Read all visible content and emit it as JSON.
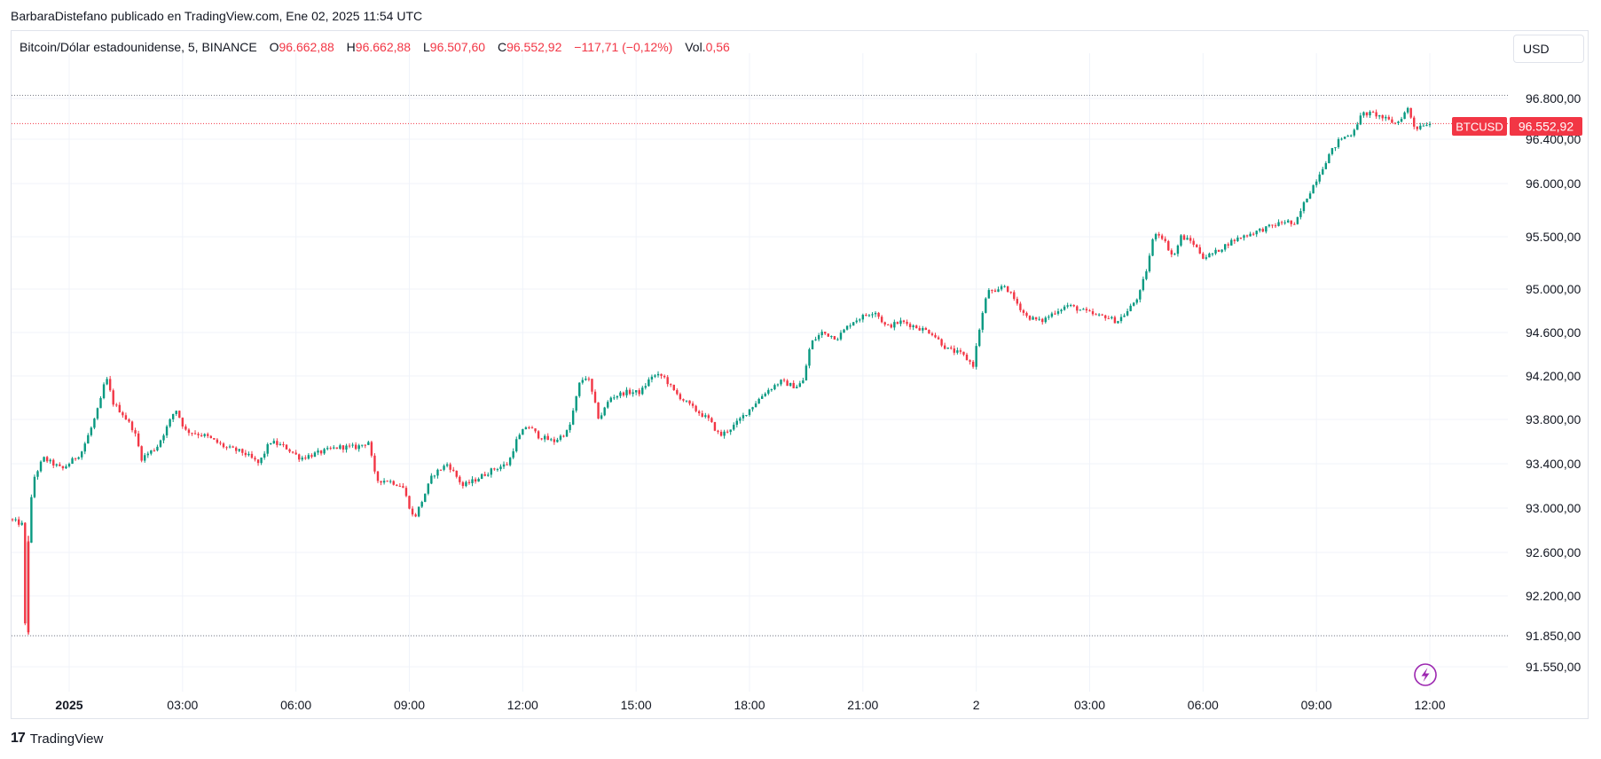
{
  "attribution": "BarbaraDistefano publicado en TradingView.com, Ene 02, 2025 11:54 UTC",
  "legend": {
    "symbol": "Bitcoin/Dólar estadounidense, 5, BINANCE",
    "o_label": "O",
    "o_value": "96.662,88",
    "h_label": "H",
    "h_value": "96.662,88",
    "l_label": "L",
    "l_value": "96.507,60",
    "c_label": "C",
    "c_value": "96.552,92",
    "change": "−117,71 (−0,12%)",
    "vol_label": "Vol.",
    "vol_value": "0,56"
  },
  "currency": "USD",
  "price_tag": {
    "symbol": "BTCUSD",
    "value": "96.552,92"
  },
  "footer": {
    "brand": "TradingView",
    "mark": "17"
  },
  "colors": {
    "up": "#089981",
    "down": "#f23645",
    "grid": "#f0f3fa",
    "accent_icon": "#9c27b0"
  },
  "chart_data": {
    "type": "candlestick",
    "title": "Bitcoin/Dólar estadounidense, 5, BINANCE",
    "interval": "5",
    "ylim": [
      91400,
      96950
    ],
    "y_ticks": [
      91550,
      91850,
      92200,
      92600,
      93000,
      93400,
      93800,
      94200,
      94600,
      95000,
      95500,
      96000,
      96400,
      96800
    ],
    "y_tick_labels": [
      "91.550,00",
      "91.850,00",
      "92.200,00",
      "92.600,00",
      "93.000,00",
      "93.400,00",
      "93.800,00",
      "94.200,00",
      "94.600,00",
      "95.000,00",
      "95.500,00",
      "96.000,00",
      "96.400,00",
      "96.800,00"
    ],
    "x_ticks": [
      {
        "label": "2025",
        "bold": true,
        "hour": 1.5
      },
      {
        "label": "03:00",
        "hour": 4.5
      },
      {
        "label": "06:00",
        "hour": 7.5
      },
      {
        "label": "09:00",
        "hour": 10.5
      },
      {
        "label": "12:00",
        "hour": 13.5
      },
      {
        "label": "15:00",
        "hour": 16.5
      },
      {
        "label": "18:00",
        "hour": 19.5
      },
      {
        "label": "21:00",
        "hour": 22.5
      },
      {
        "label": "2",
        "hour": 25.5
      },
      {
        "label": "03:00",
        "hour": 28.5
      },
      {
        "label": "06:00",
        "hour": 31.5
      },
      {
        "label": "09:00",
        "hour": 34.5
      },
      {
        "label": "12:00",
        "hour": 37.5
      }
    ],
    "x_range_hours": [
      0,
      39.5
    ],
    "high_line": 96830,
    "low_line": 91850,
    "last_price": 96552.92,
    "anchors": [
      [
        0,
        92900
      ],
      [
        0.35,
        92850
      ],
      [
        0.42,
        91900
      ],
      [
        0.5,
        92700
      ],
      [
        0.62,
        93250
      ],
      [
        0.9,
        93450
      ],
      [
        1.4,
        93350
      ],
      [
        1.9,
        93500
      ],
      [
        2.2,
        93750
      ],
      [
        2.4,
        93950
      ],
      [
        2.55,
        94200
      ],
      [
        2.75,
        93950
      ],
      [
        3.0,
        93850
      ],
      [
        3.3,
        93700
      ],
      [
        3.5,
        93450
      ],
      [
        3.9,
        93550
      ],
      [
        4.2,
        93750
      ],
      [
        4.4,
        93900
      ],
      [
        4.65,
        93700
      ],
      [
        5.2,
        93650
      ],
      [
        5.7,
        93550
      ],
      [
        6.2,
        93500
      ],
      [
        6.6,
        93400
      ],
      [
        6.9,
        93600
      ],
      [
        7.3,
        93550
      ],
      [
        7.7,
        93450
      ],
      [
        8.2,
        93500
      ],
      [
        8.7,
        93550
      ],
      [
        9.2,
        93550
      ],
      [
        9.5,
        93600
      ],
      [
        9.7,
        93250
      ],
      [
        10.0,
        93250
      ],
      [
        10.4,
        93200
      ],
      [
        10.7,
        92900
      ],
      [
        10.9,
        93050
      ],
      [
        11.2,
        93300
      ],
      [
        11.6,
        93400
      ],
      [
        12.0,
        93200
      ],
      [
        12.3,
        93250
      ],
      [
        12.8,
        93350
      ],
      [
        13.2,
        93400
      ],
      [
        13.4,
        93600
      ],
      [
        13.7,
        93750
      ],
      [
        14.0,
        93650
      ],
      [
        14.4,
        93600
      ],
      [
        14.8,
        93700
      ],
      [
        15.1,
        94150
      ],
      [
        15.3,
        94200
      ],
      [
        15.6,
        93800
      ],
      [
        15.9,
        94000
      ],
      [
        16.3,
        94050
      ],
      [
        16.7,
        94050
      ],
      [
        17.0,
        94200
      ],
      [
        17.3,
        94200
      ],
      [
        17.6,
        94050
      ],
      [
        18.1,
        93900
      ],
      [
        18.5,
        93800
      ],
      [
        18.8,
        93650
      ],
      [
        19.2,
        93750
      ],
      [
        19.6,
        93900
      ],
      [
        20.0,
        94050
      ],
      [
        20.4,
        94150
      ],
      [
        20.8,
        94100
      ],
      [
        21.0,
        94150
      ],
      [
        21.2,
        94500
      ],
      [
        21.5,
        94600
      ],
      [
        21.9,
        94550
      ],
      [
        22.3,
        94700
      ],
      [
        22.6,
        94750
      ],
      [
        22.9,
        94800
      ],
      [
        23.2,
        94650
      ],
      [
        23.6,
        94700
      ],
      [
        24.0,
        94650
      ],
      [
        24.4,
        94600
      ],
      [
        24.8,
        94450
      ],
      [
        25.2,
        94400
      ],
      [
        25.5,
        94300
      ],
      [
        25.7,
        94700
      ],
      [
        25.9,
        95000
      ],
      [
        26.1,
        94950
      ],
      [
        26.3,
        95050
      ],
      [
        26.6,
        94900
      ],
      [
        26.9,
        94750
      ],
      [
        27.3,
        94700
      ],
      [
        27.7,
        94800
      ],
      [
        28.0,
        94850
      ],
      [
        28.4,
        94800
      ],
      [
        28.8,
        94750
      ],
      [
        29.0,
        94750
      ],
      [
        29.3,
        94700
      ],
      [
        29.6,
        94800
      ],
      [
        29.9,
        94950
      ],
      [
        30.1,
        95200
      ],
      [
        30.3,
        95550
      ],
      [
        30.5,
        95500
      ],
      [
        30.8,
        95300
      ],
      [
        31.0,
        95500
      ],
      [
        31.3,
        95450
      ],
      [
        31.6,
        95300
      ],
      [
        31.9,
        95350
      ],
      [
        32.3,
        95450
      ],
      [
        32.6,
        95500
      ],
      [
        33.0,
        95550
      ],
      [
        33.4,
        95600
      ],
      [
        33.8,
        95650
      ],
      [
        34.0,
        95600
      ],
      [
        34.3,
        95850
      ],
      [
        34.6,
        96050
      ],
      [
        34.9,
        96250
      ],
      [
        35.2,
        96400
      ],
      [
        35.5,
        96450
      ],
      [
        35.8,
        96650
      ],
      [
        36.1,
        96650
      ],
      [
        36.4,
        96600
      ],
      [
        36.7,
        96550
      ],
      [
        37.0,
        96700
      ],
      [
        37.2,
        96500
      ],
      [
        37.4,
        96550
      ],
      [
        37.55,
        96552.92
      ]
    ]
  }
}
